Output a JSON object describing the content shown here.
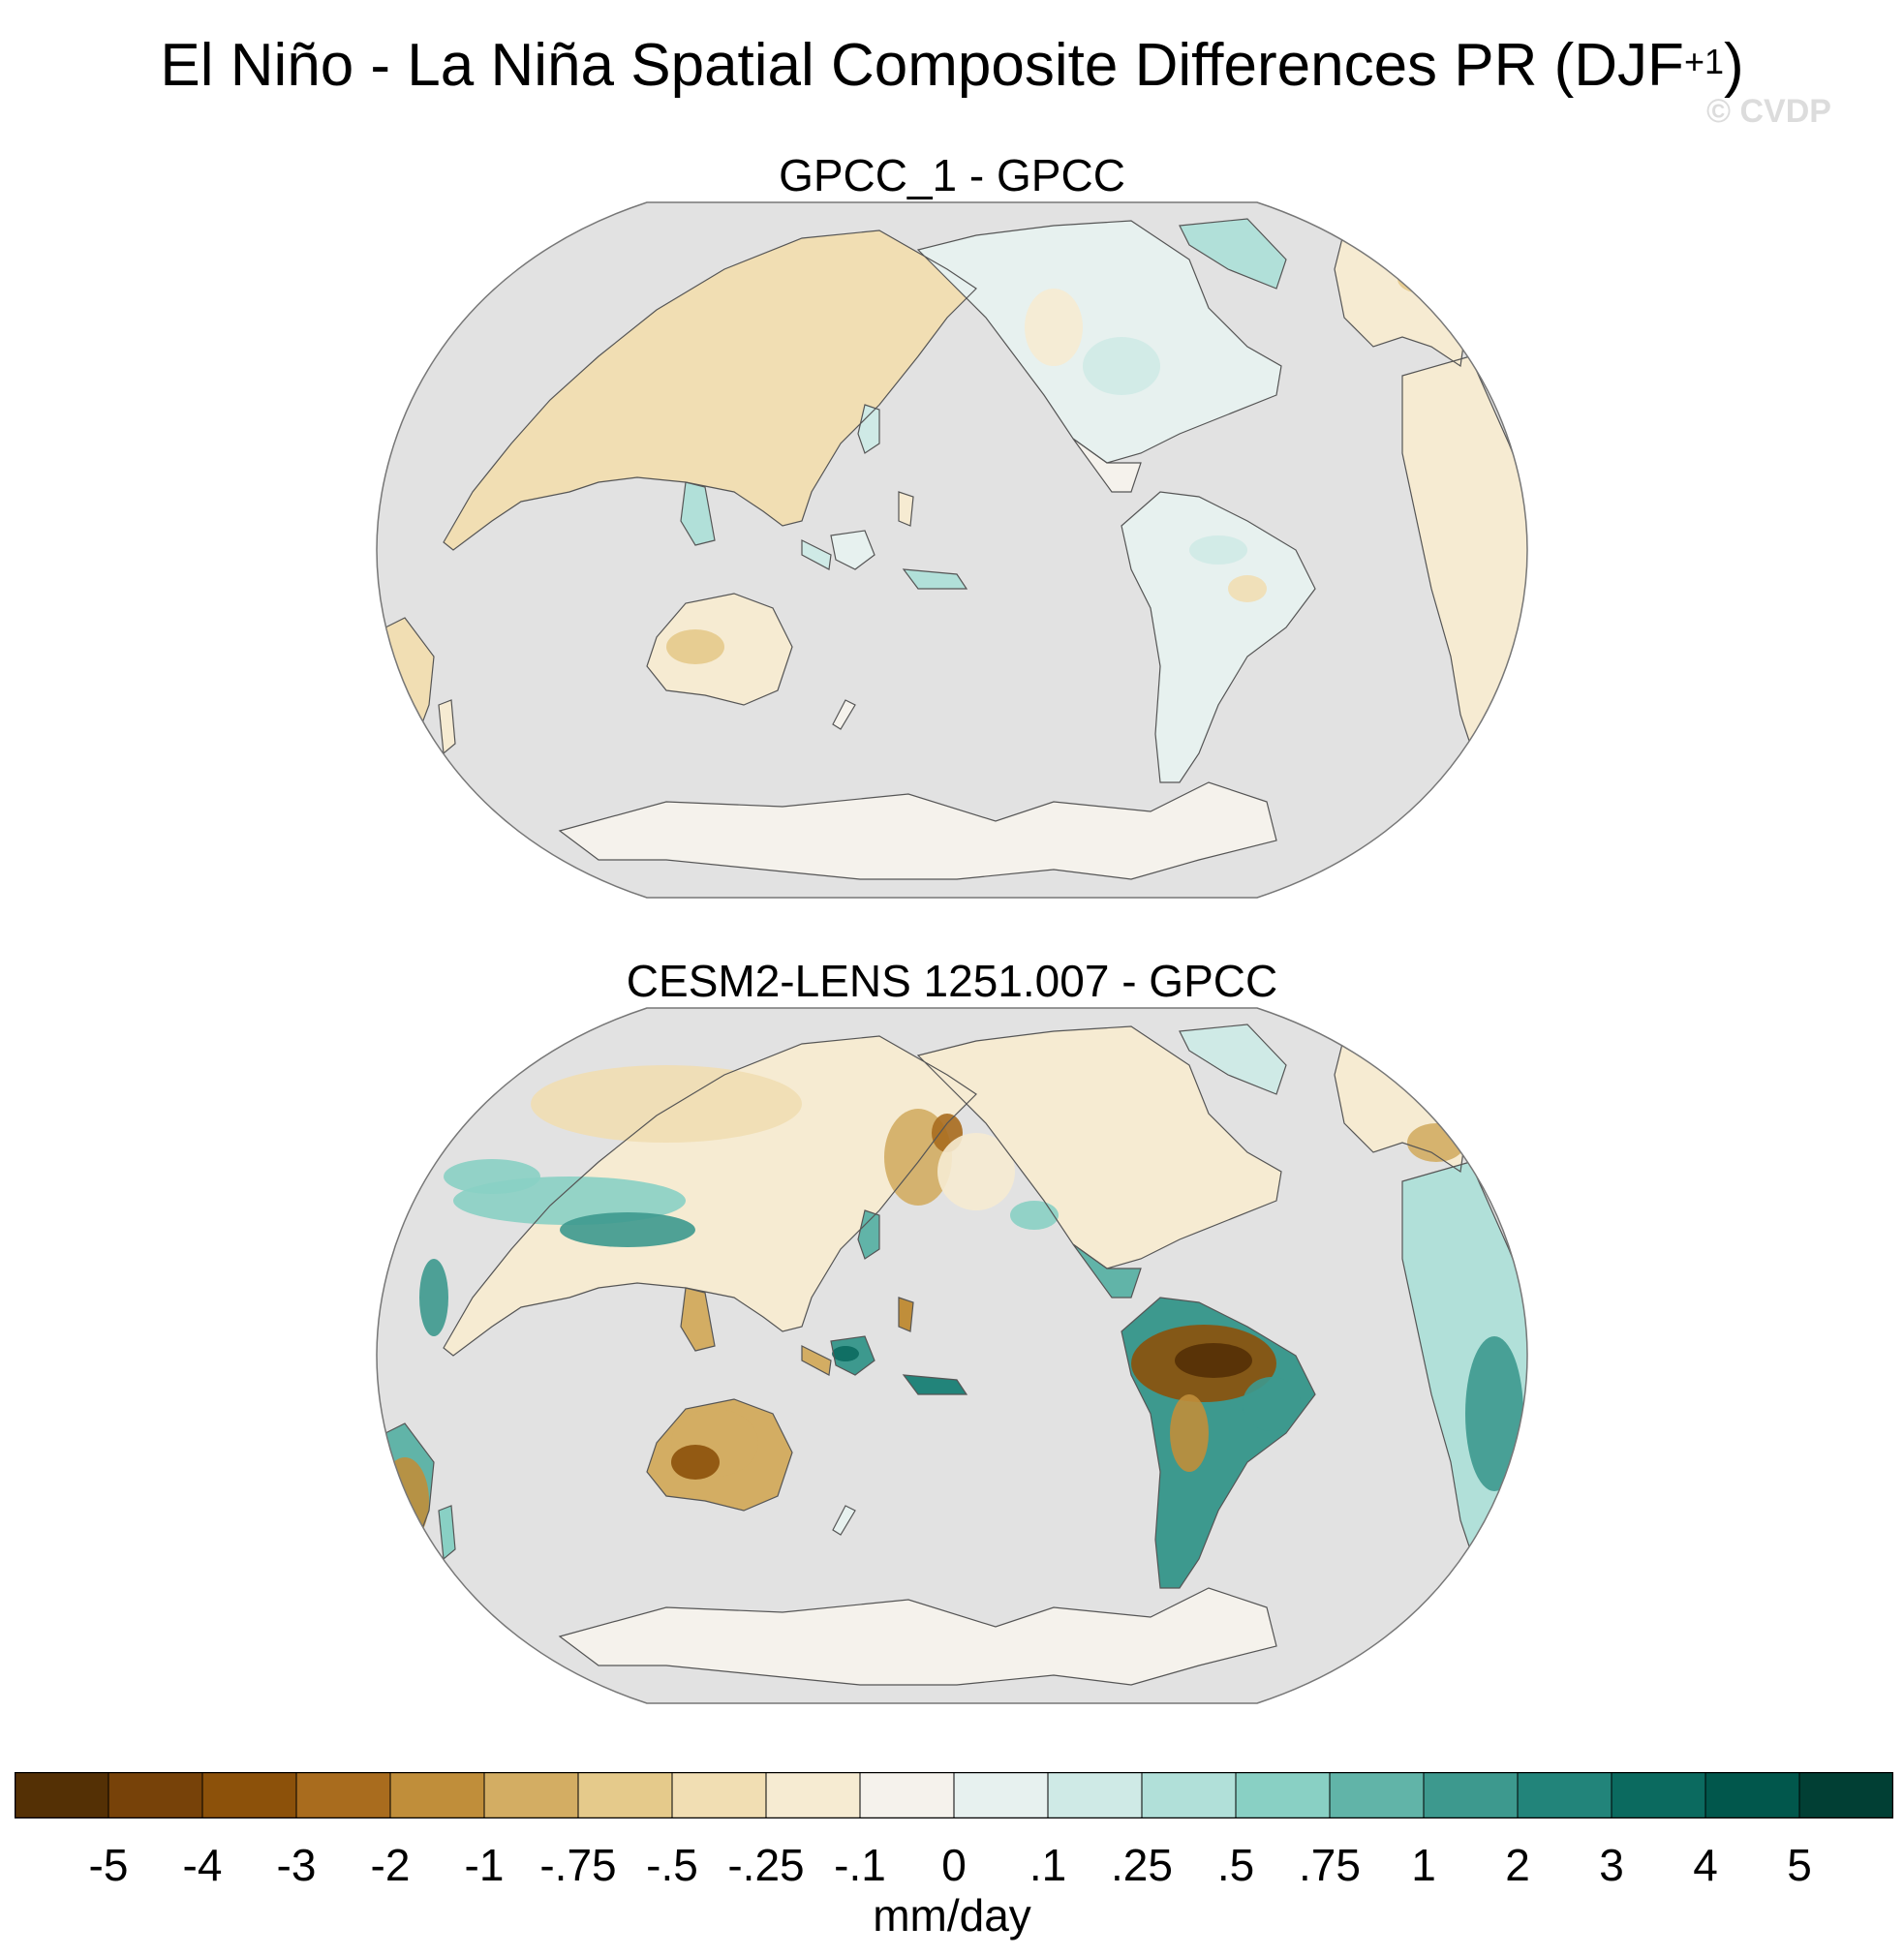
{
  "title": {
    "main": "El Niño - La Niña Spatial Composite Differences PR (DJF",
    "superscript": "+1",
    "close": ")"
  },
  "watermark": "© CVDP",
  "panels": [
    {
      "title": "GPCC_1 - GPCC"
    },
    {
      "title": "CESM2-LENS 1251.007 - GPCC"
    }
  ],
  "colorbar": {
    "units": "mm/day",
    "labels": [
      "-5",
      "-4",
      "-3",
      "-2",
      "-1",
      "-.75",
      "-.5",
      "-.25",
      "-.1",
      "0",
      ".1",
      ".25",
      ".5",
      ".75",
      "1",
      "2",
      "3",
      "4",
      "5"
    ],
    "colors": [
      "#543005",
      "#774209",
      "#8c510a",
      "#a96c1e",
      "#c08e3a",
      "#d3ad63",
      "#e5ca8b",
      "#f1deb3",
      "#f6ebd2",
      "#f5f2ec",
      "#e7f1ef",
      "#cfeae6",
      "#b1e0d9",
      "#89d0c4",
      "#61b4a8",
      "#3d998e",
      "#22847a",
      "#0b6a5f",
      "#01574c",
      "#013f34"
    ]
  },
  "map_colors": {
    "ocean": "#e2e2e2",
    "coastline": "#555555",
    "border": "#777777"
  }
}
